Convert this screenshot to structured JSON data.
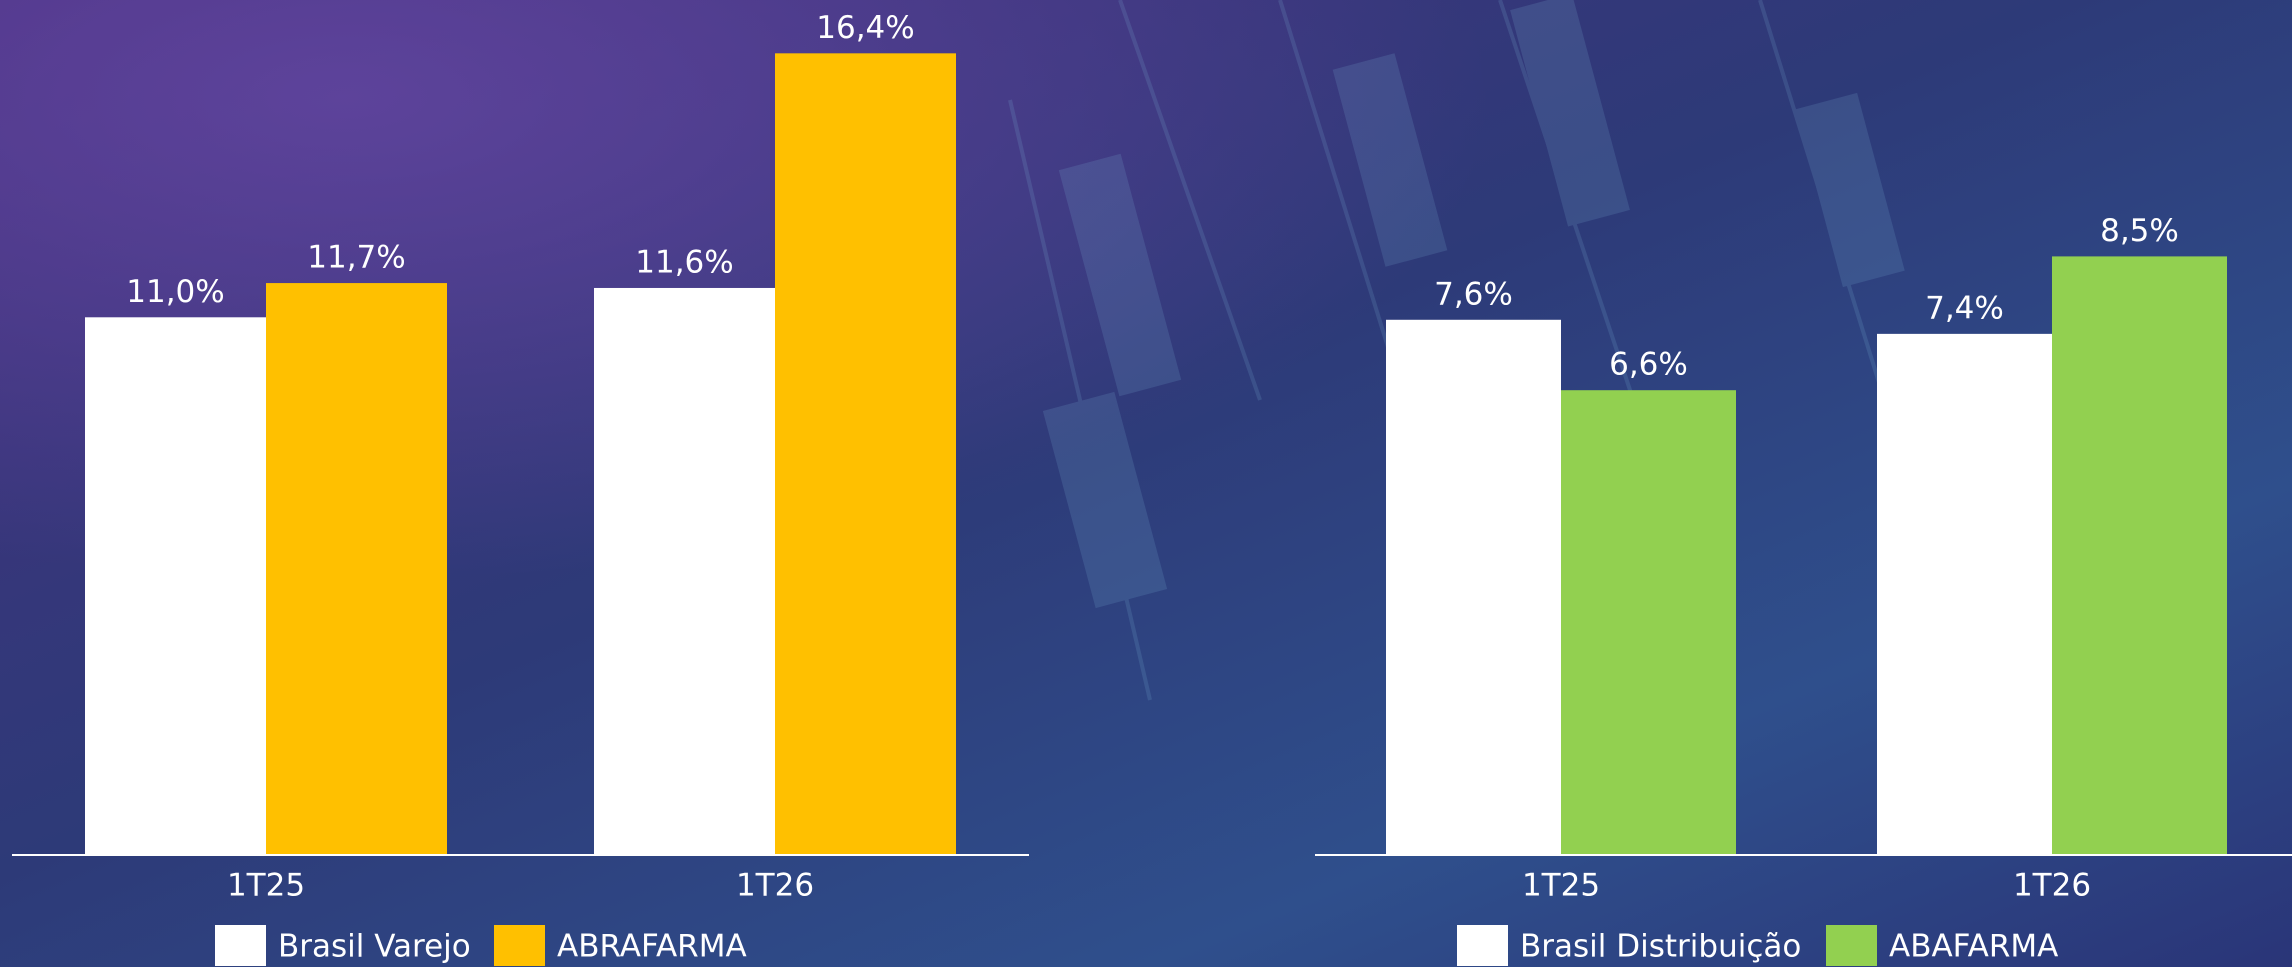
{
  "chart_data": [
    {
      "type": "bar",
      "categories": [
        "1T25",
        "1T26"
      ],
      "ylim": [
        0,
        17
      ],
      "series": [
        {
          "name": "Brasil Varejo",
          "color": "#ffffff",
          "values": [
            11.0,
            11.6
          ],
          "value_labels": [
            "11,0%",
            "11,6%"
          ]
        },
        {
          "name": "ABRAFARMA",
          "color": "#ffc000",
          "values": [
            11.7,
            16.4
          ],
          "value_labels": [
            "11,7%",
            "16,4%"
          ]
        }
      ]
    },
    {
      "type": "bar",
      "categories": [
        "1T25",
        "1T26"
      ],
      "ylim": [
        0,
        11.8
      ],
      "series": [
        {
          "name": "Brasil Distribuição",
          "color": "#ffffff",
          "values": [
            7.6,
            7.4
          ],
          "value_labels": [
            "7,6%",
            "7,4%"
          ]
        },
        {
          "name": "ABAFARMA",
          "color": "#92d050",
          "values": [
            6.6,
            8.5
          ],
          "value_labels": [
            "6,6%",
            "8,5%"
          ]
        }
      ]
    }
  ]
}
